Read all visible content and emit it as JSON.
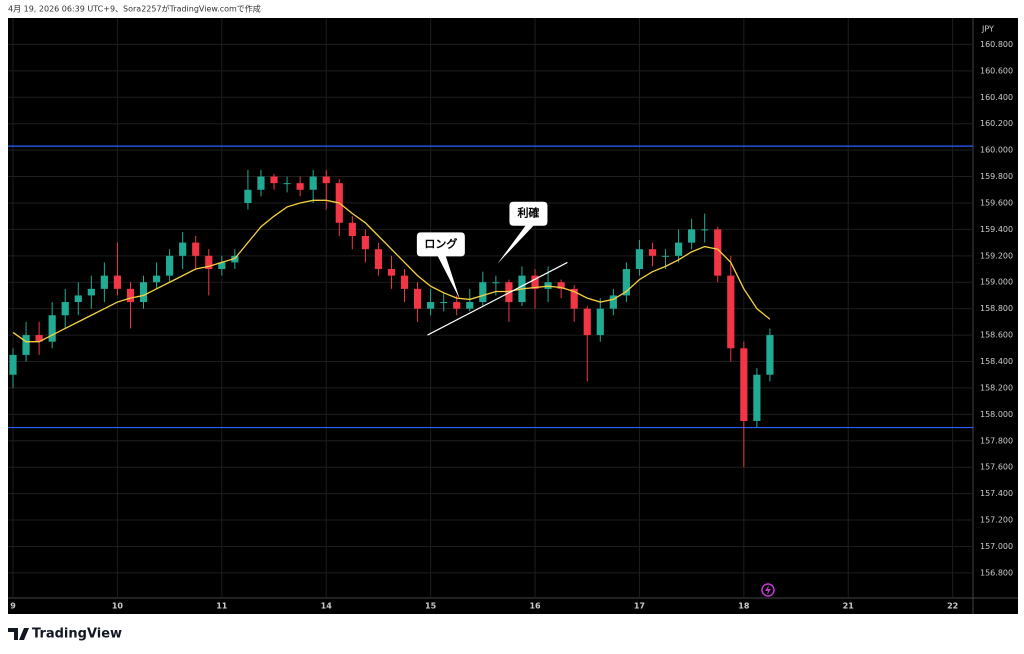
{
  "header": "4月 19, 2026 06:39 UTC+9、Sora2257がTradingView.comで作成",
  "brand": "TradingView",
  "chart_data": {
    "type": "candlestick",
    "axis_label": "JPY",
    "x": [
      0,
      0.125,
      0.25,
      0.375,
      0.5,
      0.625,
      0.75,
      0.875,
      1,
      1.125,
      1.25,
      1.375,
      1.5,
      1.625,
      1.75,
      1.875,
      2,
      2.125,
      2.25,
      2.375,
      2.5,
      2.625,
      2.75,
      2.875,
      3,
      3.125,
      3.25,
      3.375,
      3.5,
      3.625,
      3.75,
      3.875,
      4,
      4.125,
      4.25,
      4.375,
      4.5,
      4.625,
      4.75,
      4.875,
      5,
      5.125,
      5.25,
      5.375,
      5.5,
      5.625,
      5.75,
      5.875,
      6,
      6.125,
      6.25,
      6.375,
      6.5,
      6.625,
      6.75,
      6.875,
      7,
      7.125,
      7.25
    ],
    "open": [
      158.3,
      158.45,
      158.6,
      158.55,
      158.75,
      158.85,
      158.9,
      158.95,
      159.05,
      158.95,
      158.85,
      159.0,
      159.05,
      159.2,
      159.3,
      159.2,
      159.1,
      159.15,
      159.6,
      159.7,
      159.8,
      159.75,
      159.75,
      159.7,
      159.8,
      159.75,
      159.45,
      159.35,
      159.25,
      159.1,
      159.05,
      158.95,
      158.8,
      158.85,
      158.85,
      158.8,
      158.85,
      159.0,
      159.0,
      158.85,
      159.05,
      158.95,
      159.0,
      158.95,
      158.8,
      158.6,
      158.8,
      158.9,
      159.1,
      159.25,
      159.2,
      159.2,
      159.3,
      159.4,
      159.4,
      159.05,
      158.5,
      157.95,
      158.3
    ],
    "high": [
      158.5,
      158.7,
      158.7,
      158.85,
      158.95,
      159.0,
      159.05,
      159.15,
      159.3,
      159.0,
      159.05,
      159.15,
      159.25,
      159.38,
      159.35,
      159.25,
      159.2,
      159.25,
      159.85,
      159.85,
      159.82,
      159.8,
      159.8,
      159.85,
      159.85,
      159.78,
      159.5,
      159.4,
      159.3,
      159.2,
      159.1,
      159.0,
      158.95,
      158.92,
      158.9,
      158.95,
      159.08,
      159.05,
      159.02,
      159.12,
      159.1,
      159.12,
      159.02,
      158.98,
      158.82,
      158.88,
      158.95,
      159.15,
      159.32,
      159.3,
      159.25,
      159.4,
      159.48,
      159.52,
      159.42,
      159.2,
      158.55,
      158.35,
      158.65
    ],
    "low": [
      158.2,
      158.4,
      158.45,
      158.5,
      158.65,
      158.75,
      158.8,
      158.85,
      158.9,
      158.65,
      158.8,
      158.95,
      159.0,
      159.1,
      159.1,
      158.9,
      159.05,
      159.1,
      159.55,
      159.65,
      159.7,
      159.68,
      159.65,
      159.6,
      159.55,
      159.35,
      159.25,
      159.15,
      159.05,
      158.95,
      158.85,
      158.7,
      158.75,
      158.78,
      158.75,
      158.78,
      158.82,
      158.9,
      158.7,
      158.82,
      158.8,
      158.85,
      158.88,
      158.7,
      158.25,
      158.55,
      158.75,
      158.85,
      159.05,
      159.12,
      159.1,
      159.15,
      159.25,
      159.3,
      159.0,
      158.4,
      157.6,
      157.9,
      158.25
    ],
    "close": [
      158.45,
      158.6,
      158.55,
      158.75,
      158.85,
      158.9,
      158.95,
      159.05,
      158.95,
      158.85,
      159.0,
      159.05,
      159.2,
      159.3,
      159.2,
      159.1,
      159.15,
      159.2,
      159.7,
      159.8,
      159.75,
      159.75,
      159.7,
      159.8,
      159.75,
      159.45,
      159.35,
      159.25,
      159.1,
      159.05,
      158.95,
      158.8,
      158.85,
      158.85,
      158.8,
      158.85,
      159.0,
      159.0,
      158.85,
      159.05,
      158.95,
      159.0,
      158.95,
      158.8,
      158.6,
      158.8,
      158.9,
      159.1,
      159.25,
      159.2,
      159.2,
      159.3,
      159.4,
      159.4,
      159.05,
      158.5,
      157.95,
      158.3,
      158.6
    ],
    "up_color": "#22ab94",
    "down_color": "#f23645",
    "ma": {
      "color": "#f5d142",
      "values": [
        158.62,
        158.55,
        158.55,
        158.6,
        158.65,
        158.7,
        158.75,
        158.8,
        158.85,
        158.88,
        158.9,
        158.95,
        159.0,
        159.05,
        159.1,
        159.12,
        159.15,
        159.18,
        159.3,
        159.42,
        159.5,
        159.57,
        159.6,
        159.62,
        159.62,
        159.6,
        159.52,
        159.45,
        159.35,
        159.25,
        159.15,
        159.05,
        158.97,
        158.92,
        158.88,
        158.87,
        158.9,
        158.93,
        158.93,
        158.95,
        158.96,
        158.97,
        158.96,
        158.93,
        158.88,
        158.85,
        158.87,
        158.93,
        159.02,
        159.08,
        159.12,
        159.17,
        159.23,
        159.27,
        159.25,
        159.15,
        158.95,
        158.8,
        158.72
      ]
    },
    "hlines": [
      {
        "value": 160.03,
        "color": "#2962ff"
      },
      {
        "value": 157.9,
        "color": "#2962ff"
      }
    ],
    "trendline": {
      "x": [
        3.97,
        5.31
      ],
      "y": [
        158.6,
        159.15
      ],
      "color": "#ffffff"
    },
    "annotations": [
      {
        "text": "ロング",
        "x": 4.28,
        "y": 158.87
      },
      {
        "text": "利確",
        "x": 4.64,
        "y": 159.14
      }
    ],
    "xlim": [
      -0.048,
      9.195
    ],
    "ylim": [
      156.61,
      161.0
    ],
    "xticks": [
      {
        "value": 0,
        "label": "9"
      },
      {
        "value": 1,
        "label": "10"
      },
      {
        "value": 2,
        "label": "11"
      },
      {
        "value": 3,
        "label": "14"
      },
      {
        "value": 4,
        "label": "15"
      },
      {
        "value": 5,
        "label": "16"
      },
      {
        "value": 6,
        "label": "17"
      },
      {
        "value": 7,
        "label": "18"
      },
      {
        "value": 8,
        "label": "21"
      },
      {
        "value": 9,
        "label": "22"
      }
    ],
    "yticks": [
      {
        "value": 156.8,
        "label": "156.800"
      },
      {
        "value": 157.0,
        "label": "157.000"
      },
      {
        "value": 157.2,
        "label": "157.200"
      },
      {
        "value": 157.4,
        "label": "157.400"
      },
      {
        "value": 157.6,
        "label": "157.600"
      },
      {
        "value": 157.8,
        "label": "157.800"
      },
      {
        "value": 158.0,
        "label": "158.000"
      },
      {
        "value": 158.2,
        "label": "158.200"
      },
      {
        "value": 158.4,
        "label": "158.400"
      },
      {
        "value": 158.6,
        "label": "158.600"
      },
      {
        "value": 158.8,
        "label": "158.800"
      },
      {
        "value": 159.0,
        "label": "159.000"
      },
      {
        "value": 159.2,
        "label": "159.200"
      },
      {
        "value": 159.4,
        "label": "159.400"
      },
      {
        "value": 159.6,
        "label": "159.600"
      },
      {
        "value": 159.8,
        "label": "159.800"
      },
      {
        "value": 160.0,
        "label": "160.000"
      },
      {
        "value": 160.2,
        "label": "160.200"
      },
      {
        "value": 160.4,
        "label": "160.400"
      },
      {
        "value": 160.6,
        "label": "160.600"
      },
      {
        "value": 160.8,
        "label": "160.800"
      }
    ]
  }
}
